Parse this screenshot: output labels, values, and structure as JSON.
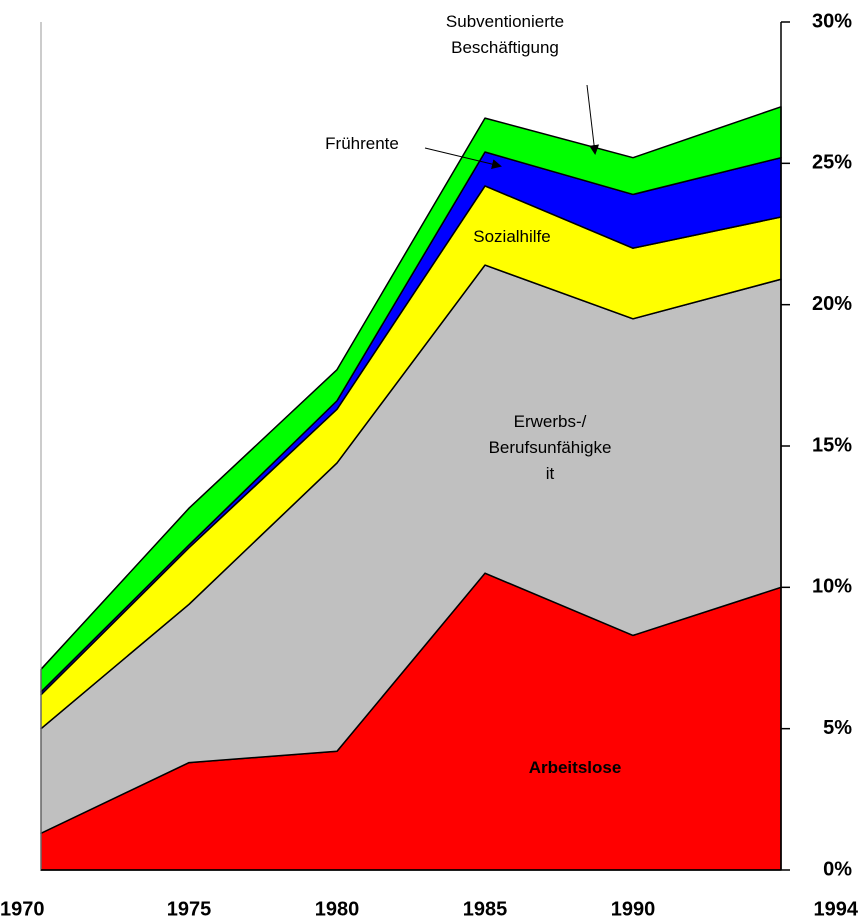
{
  "chart_data": {
    "type": "stacked_area",
    "categories": [
      "1970",
      "1975",
      "1980",
      "1985",
      "1990",
      "1994"
    ],
    "series": [
      {
        "name": "Arbeitslose",
        "color": "#ff0000",
        "values": [
          1.3,
          3.8,
          4.2,
          10.5,
          8.3,
          10.0
        ]
      },
      {
        "name": "Erwerbs-/\nBerufsunfähigke\nit",
        "color": "#c0c0c0",
        "values": [
          3.7,
          5.6,
          10.2,
          10.9,
          11.2,
          10.9
        ]
      },
      {
        "name": "Sozialhilfe",
        "color": "#ffff00",
        "values": [
          1.2,
          2.0,
          1.9,
          2.8,
          2.5,
          2.2
        ]
      },
      {
        "name": "Frührente",
        "color": "#0000ff",
        "values": [
          0.1,
          0.1,
          0.3,
          1.2,
          1.9,
          2.1
        ]
      },
      {
        "name": "Subventionierte\nBeschäftigung",
        "color": "#00ff00",
        "values": [
          0.8,
          1.3,
          1.1,
          1.2,
          1.3,
          1.8
        ]
      }
    ],
    "ylim": [
      0,
      30
    ],
    "yticks": [
      {
        "value": 0,
        "label": "0%"
      },
      {
        "value": 5,
        "label": "5%"
      },
      {
        "value": 10,
        "label": "10%"
      },
      {
        "value": 15,
        "label": "15%"
      },
      {
        "value": 20,
        "label": "20%"
      },
      {
        "value": 25,
        "label": "25%"
      },
      {
        "value": 30,
        "label": "30%"
      }
    ],
    "grid": false
  }
}
